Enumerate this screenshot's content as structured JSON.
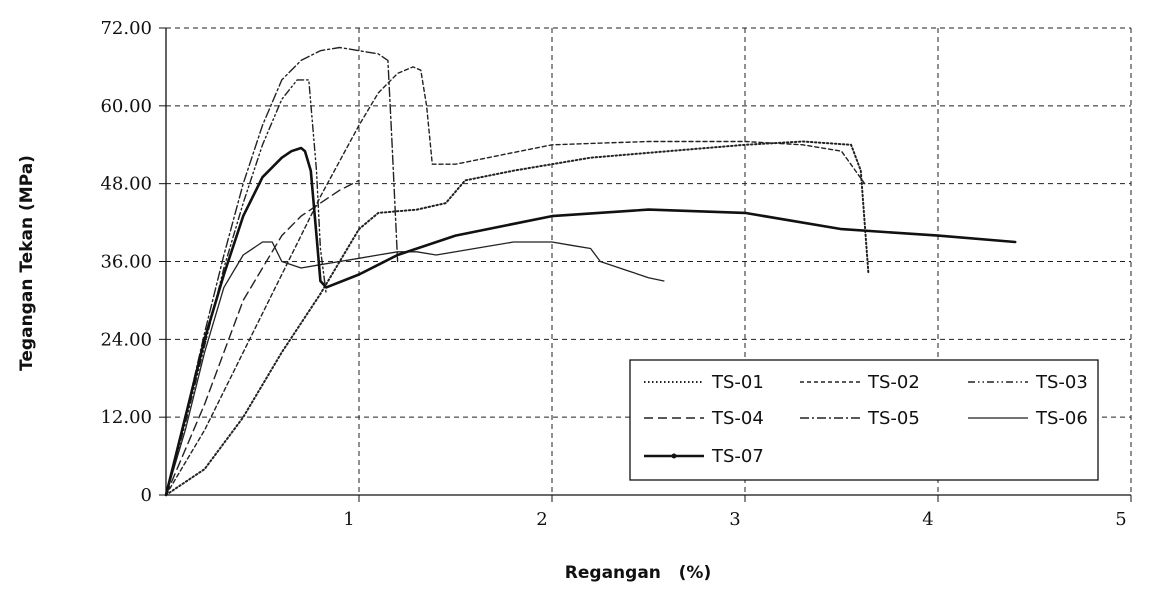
{
  "chart_data": {
    "type": "line",
    "title": "",
    "xlabel": "Regangan   (%)",
    "ylabel": "Tegangan Tekan (MPa)",
    "xlim": [
      0,
      5
    ],
    "ylim": [
      0,
      72
    ],
    "x_ticks": [
      "1",
      "2",
      "3",
      "4",
      "5"
    ],
    "y_ticks": [
      "0",
      "12.00",
      "24.00",
      "36.00",
      "48.00",
      "60.00",
      "72.00"
    ],
    "x_tick_values": [
      1,
      2,
      3,
      4,
      5
    ],
    "y_tick_values": [
      0,
      12,
      24,
      36,
      48,
      60,
      72
    ],
    "grid": true,
    "legend_position": "lower-right",
    "series": [
      {
        "name": "TS-01",
        "style": "dotted",
        "color": "#222222",
        "x": [
          0,
          0.2,
          0.4,
          0.6,
          0.8,
          1.0,
          1.1,
          1.3,
          1.45,
          1.55,
          1.8,
          2.2,
          2.6,
          3.0,
          3.3,
          3.55,
          3.6,
          3.64
        ],
        "y": [
          0,
          4,
          12,
          22,
          31,
          41,
          43.5,
          44,
          45,
          48.5,
          50,
          52,
          53,
          54,
          54.5,
          54,
          50,
          34
        ]
      },
      {
        "name": "TS-02",
        "style": "dashed",
        "color": "#222222",
        "x": [
          0,
          0.2,
          0.4,
          0.6,
          0.8,
          1.0,
          1.1,
          1.2,
          1.28,
          1.32,
          1.35,
          1.38,
          1.5,
          2.0,
          2.5,
          3.0,
          3.3,
          3.5,
          3.62
        ],
        "y": [
          0,
          10,
          22,
          34,
          46,
          57,
          62,
          65,
          66,
          65.5,
          60,
          51,
          51,
          54,
          54.5,
          54.5,
          54,
          53,
          48
        ]
      },
      {
        "name": "TS-03",
        "style": "dashdotdot",
        "color": "#222222",
        "x": [
          0,
          0.1,
          0.2,
          0.3,
          0.4,
          0.5,
          0.6,
          0.68,
          0.74,
          0.78,
          0.8,
          0.83
        ],
        "y": [
          0,
          11,
          23,
          35,
          45,
          54,
          61,
          64,
          64,
          50,
          38,
          31
        ]
      },
      {
        "name": "TS-04",
        "style": "longdash",
        "color": "#222222",
        "x": [
          0,
          0.2,
          0.4,
          0.6,
          0.7,
          0.8,
          0.9,
          1.0
        ],
        "y": [
          0,
          14,
          30,
          40,
          43,
          45,
          47,
          48.5
        ]
      },
      {
        "name": "TS-05",
        "style": "dashdot",
        "color": "#222222",
        "x": [
          0,
          0.1,
          0.2,
          0.3,
          0.4,
          0.5,
          0.6,
          0.7,
          0.8,
          0.9,
          1.0,
          1.1,
          1.15,
          1.17,
          1.2
        ],
        "y": [
          0,
          12,
          25,
          37,
          48,
          57,
          64,
          67,
          68.5,
          69,
          68.5,
          68,
          67,
          55,
          36
        ]
      },
      {
        "name": "TS-06",
        "style": "solid",
        "color": "#222222",
        "x": [
          0,
          0.1,
          0.2,
          0.3,
          0.4,
          0.5,
          0.55,
          0.6,
          0.7,
          0.8,
          0.9,
          1.0,
          1.1,
          1.2,
          1.3,
          1.4,
          1.6,
          1.8,
          2.0,
          2.1,
          2.2,
          2.25,
          2.3,
          2.4,
          2.5,
          2.58
        ],
        "y": [
          0,
          10,
          22,
          32,
          37,
          39,
          39,
          36,
          35,
          35.5,
          36,
          36.5,
          37,
          37.5,
          37.5,
          37,
          38,
          39,
          39,
          38.5,
          38,
          36,
          35.5,
          34.5,
          33.5,
          33
        ]
      },
      {
        "name": "TS-07",
        "style": "solid-marker",
        "color": "#111111",
        "x": [
          0,
          0.1,
          0.2,
          0.3,
          0.4,
          0.5,
          0.6,
          0.65,
          0.7,
          0.72,
          0.75,
          0.78,
          0.8,
          0.83,
          1.0,
          1.2,
          1.5,
          2.0,
          2.5,
          3.0,
          3.5,
          4.0,
          4.4
        ],
        "y": [
          0,
          12,
          24,
          34,
          43,
          49,
          52,
          53,
          53.5,
          53,
          50,
          40,
          33,
          32,
          34,
          37,
          40,
          43,
          44,
          43.5,
          41,
          40,
          39
        ]
      }
    ]
  }
}
